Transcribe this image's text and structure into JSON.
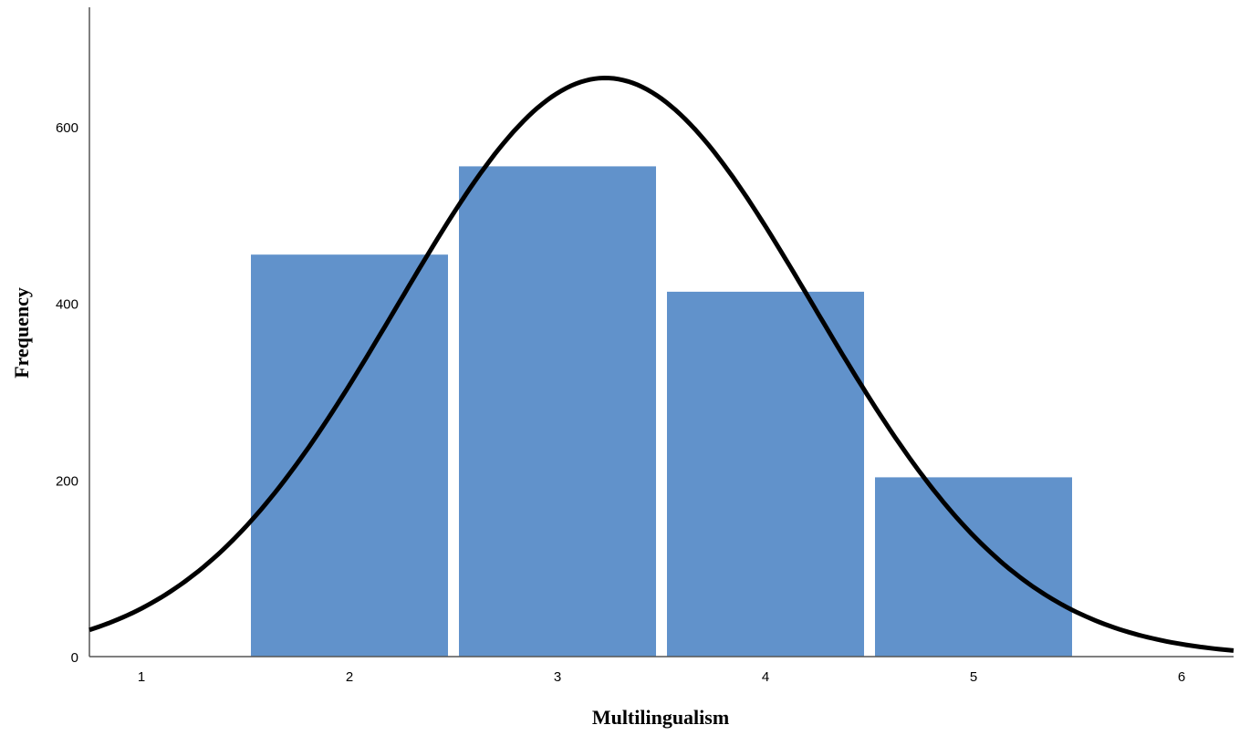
{
  "chart_data": {
    "type": "bar",
    "categories": [
      "2",
      "3",
      "4",
      "5"
    ],
    "values": [
      455,
      555,
      413,
      203
    ],
    "xlabel": "Multilingualism",
    "ylabel": "Frequency",
    "x_ticks": [
      "1",
      "2",
      "3",
      "4",
      "5",
      "6"
    ],
    "y_ticks": [
      0,
      200,
      400,
      600
    ],
    "xlim": [
      0.75,
      6.25
    ],
    "ylim": [
      0,
      735
    ],
    "grid": false,
    "bar_color": "#6192cb",
    "normal_curve": {
      "color": "#000000",
      "mean": 3.23,
      "sd": 1.0,
      "peak": 655
    }
  }
}
